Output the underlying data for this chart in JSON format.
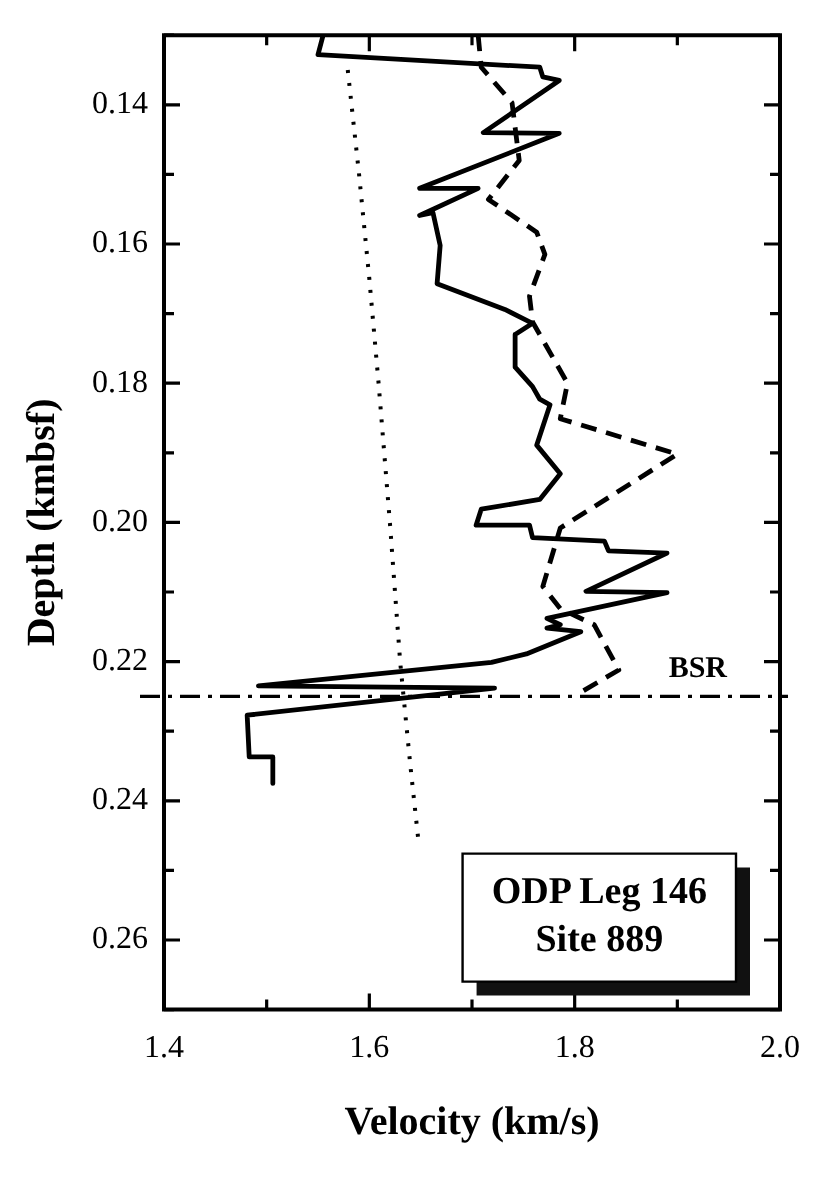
{
  "chart_data": {
    "type": "line",
    "xlabel": "Velocity (km/s)",
    "ylabel": "Depth (kmbsf)",
    "xlim": [
      1.4,
      2.0
    ],
    "xticks": [
      1.4,
      {
        "value": 1.5,
        "label": null
      },
      1.6,
      {
        "value": 1.7,
        "label": null
      },
      1.8,
      {
        "value": 1.9,
        "label": null
      },
      {
        "value": 2.0,
        "label": "2.0"
      }
    ],
    "ylim": [
      0.27,
      0.13
    ],
    "yticks": [
      {
        "value": 0.13,
        "label": null
      },
      0.14,
      {
        "value": 0.15,
        "label": null
      },
      0.16,
      {
        "value": 0.17,
        "label": null
      },
      0.18,
      {
        "value": 0.19,
        "label": null
      },
      {
        "value": 0.2,
        "label": "0.20"
      },
      {
        "value": 0.21,
        "label": null
      },
      0.22,
      {
        "value": 0.23,
        "label": null
      },
      0.24,
      {
        "value": 0.25,
        "label": null
      },
      0.26,
      {
        "value": 0.27,
        "label": null
      }
    ],
    "grid": false,
    "legend": false,
    "marker": "none",
    "series": [
      {
        "color": "#000000",
        "line_style": "solid",
        "x": [
          1.555,
          1.55,
          1.766,
          1.769,
          1.785,
          1.711,
          1.785,
          1.649,
          1.706,
          1.649,
          1.662,
          1.669,
          1.666,
          1.732,
          1.759,
          1.742,
          1.742,
          1.759,
          1.766,
          1.776,
          1.763,
          1.786,
          1.766,
          1.709,
          1.704,
          1.756,
          1.759,
          1.829,
          1.833,
          1.89,
          1.811,
          1.89,
          1.773,
          1.786,
          1.773,
          1.806,
          1.753,
          1.719,
          1.492,
          1.722,
          1.481,
          1.483,
          1.506,
          1.506
        ],
        "values": [
          0.13,
          0.1328,
          0.1346,
          0.136,
          0.1365,
          0.144,
          0.1441,
          0.152,
          0.152,
          0.1559,
          0.1555,
          0.1602,
          0.1657,
          0.1694,
          0.1714,
          0.173,
          0.1777,
          0.1805,
          0.1823,
          0.1831,
          0.1889,
          0.193,
          0.1967,
          0.1981,
          0.2004,
          0.2004,
          0.2022,
          0.2027,
          0.2041,
          0.2044,
          0.2099,
          0.2101,
          0.2138,
          0.2147,
          0.2152,
          0.2157,
          0.2189,
          0.2201,
          0.2235,
          0.2238,
          0.2277,
          0.2337,
          0.2337,
          0.2375
        ]
      },
      {
        "color": "#000000",
        "line_style": "dashed",
        "x": [
          1.706,
          1.709,
          1.739,
          1.746,
          1.716,
          1.763,
          1.771,
          1.756,
          1.759,
          1.793,
          1.786,
          1.9,
          1.786,
          1.769,
          1.786,
          1.819,
          1.843,
          1.806
        ],
        "values": [
          0.13,
          0.1346,
          0.1397,
          0.148,
          0.1536,
          0.1583,
          0.1615,
          0.1675,
          0.1712,
          0.18,
          0.1851,
          0.1902,
          0.2008,
          0.2092,
          0.2124,
          0.2147,
          0.2212,
          0.2244
        ]
      },
      {
        "color": "#000000",
        "line_style": "dotted",
        "x": [
          1.579,
          1.59,
          1.6,
          1.609,
          1.62,
          1.63,
          1.64,
          1.648
        ],
        "values": [
          0.135,
          0.15,
          0.165,
          0.18,
          0.2,
          0.22,
          0.235,
          0.246
        ]
      }
    ],
    "ref_lines": [
      {
        "axis": "y",
        "value": 0.225,
        "line_style": "dashdot",
        "color": "#000000"
      }
    ],
    "annotations": [
      {
        "text": "BSR",
        "x": 1.92,
        "y": 0.225
      },
      "ODP Leg 146\nSite 889"
    ]
  }
}
